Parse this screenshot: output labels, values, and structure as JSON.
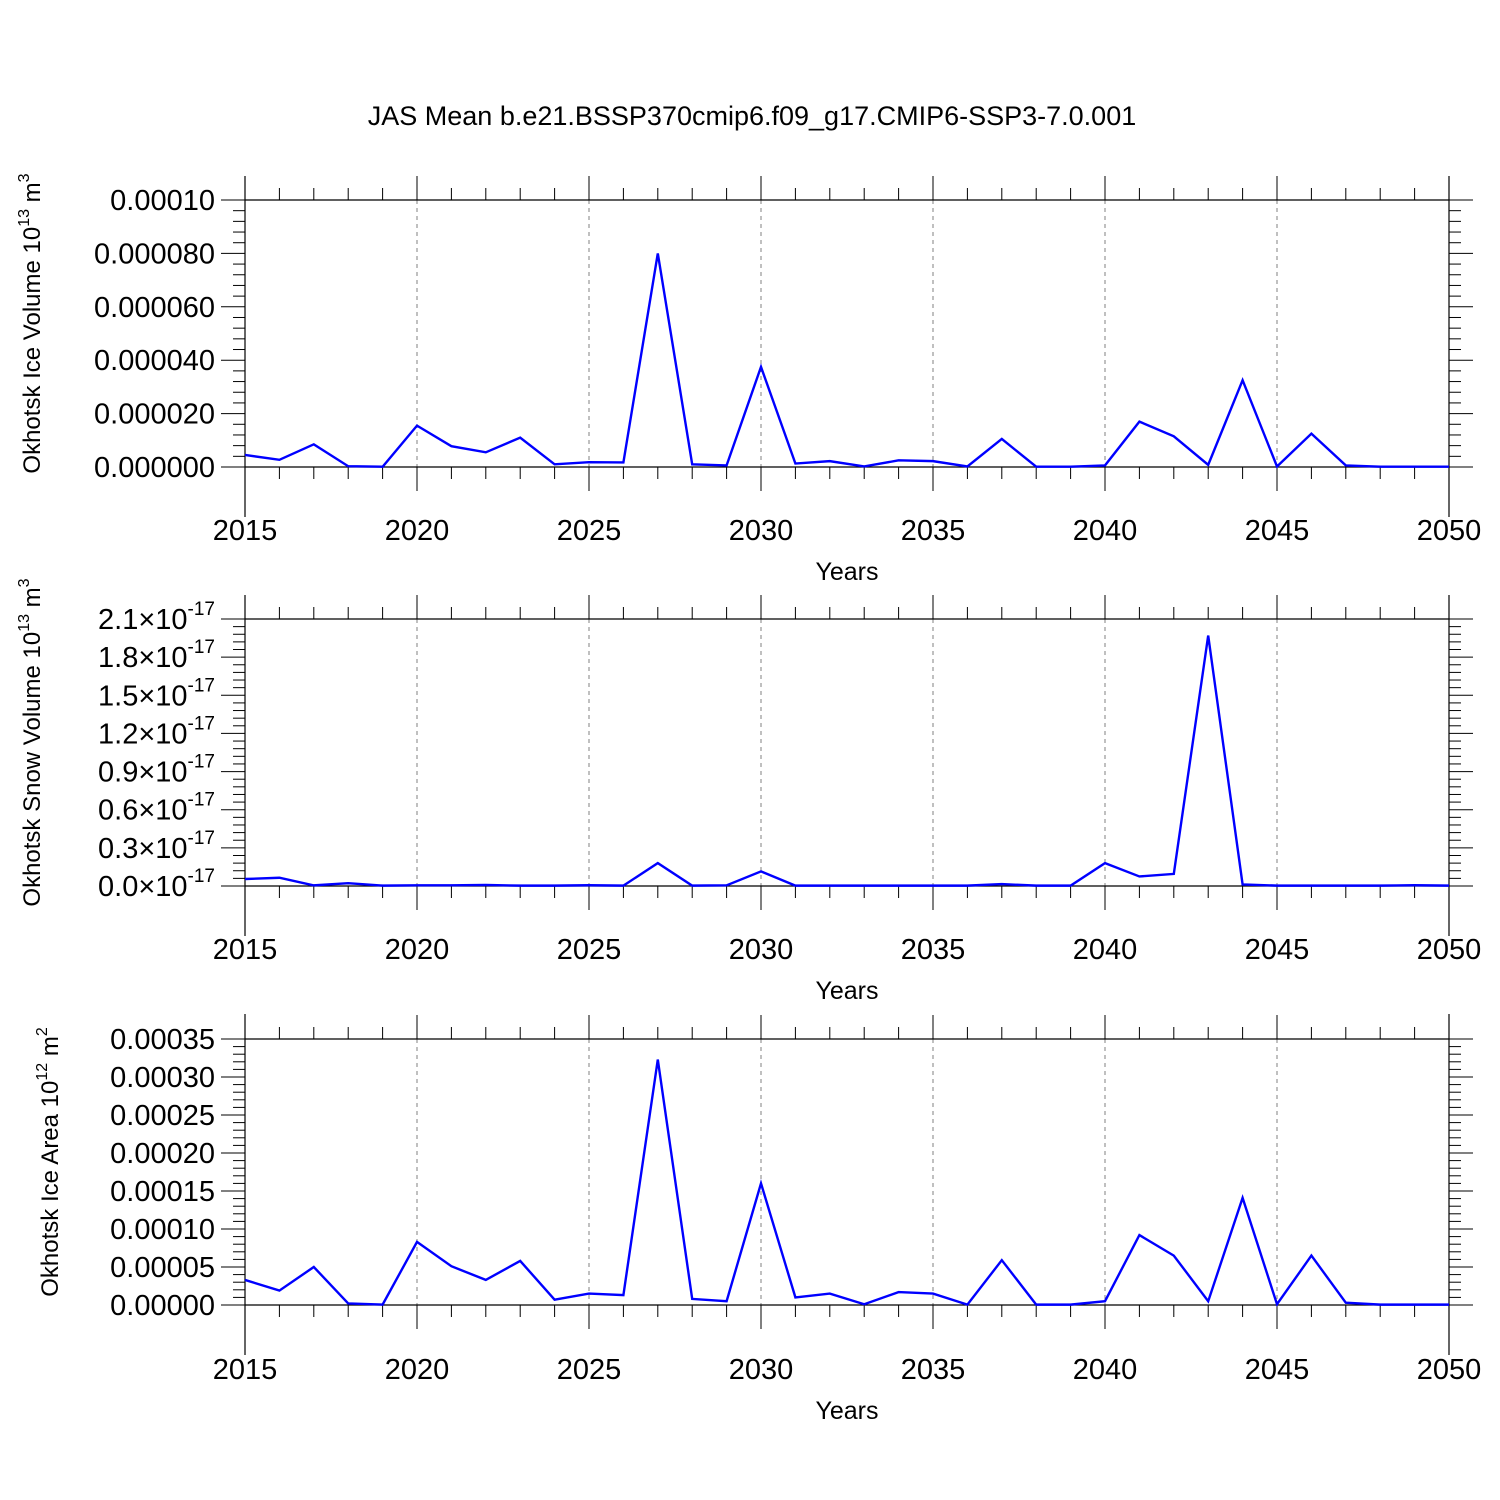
{
  "figure": {
    "title": "JAS Mean b.e21.BSSP370cmip6.f09_g17.CMIP6-SSP3-7.0.001"
  },
  "colors": {
    "line": "#0000ff",
    "axis": "#000000",
    "grid": "#808080"
  },
  "chart_data": [
    {
      "type": "line",
      "ylabel_text": "Okhotsk Ice Volume 10",
      "ylabel_exp": "13",
      "ylabel_unit": " m",
      "ylabel_unit_exp": "3",
      "xlabel": "Years",
      "xlim": [
        2015,
        2050
      ],
      "ylim": [
        0,
        0.0001
      ],
      "y_ticks": [
        0,
        2e-05,
        4e-05,
        6e-05,
        8e-05,
        0.0001
      ],
      "y_tick_labels": [
        "0.000000",
        "0.000020",
        "0.000040",
        "0.000060",
        "0.000080",
        "0.00010"
      ],
      "x_ticks": [
        2015,
        2020,
        2025,
        2030,
        2035,
        2040,
        2045,
        2050
      ],
      "x_tick_labels": [
        "2015",
        "2020",
        "2025",
        "2030",
        "2035",
        "2040",
        "2045",
        "2050"
      ],
      "grid": "vertical dashed at major x ticks",
      "series": [
        {
          "x": [
            2015,
            2016,
            2017,
            2018,
            2019,
            2020,
            2021,
            2022,
            2023,
            2024,
            2025,
            2026,
            2027,
            2028,
            2029,
            2030,
            2031,
            2032,
            2033,
            2034,
            2035,
            2036,
            2037,
            2038,
            2039,
            2040,
            2041,
            2042,
            2043,
            2044,
            2045,
            2046,
            2047,
            2048,
            2049,
            2050
          ],
          "values": [
            4.5e-06,
            2.7e-06,
            8.5e-06,
            3e-07,
            1e-07,
            1.55e-05,
            7.8e-06,
            5.5e-06,
            1.1e-05,
            1e-06,
            1.8e-06,
            1.7e-06,
            8e-05,
            1e-06,
            6e-07,
            3.75e-05,
            1.3e-06,
            2.2e-06,
            2e-07,
            2.5e-06,
            2.2e-06,
            2e-07,
            1.05e-05,
            1e-07,
            1e-07,
            6e-07,
            1.7e-05,
            1.15e-05,
            8e-07,
            3.25e-05,
            2e-07,
            1.25e-05,
            6e-07,
            1e-07,
            1e-07,
            1e-07
          ]
        }
      ]
    },
    {
      "type": "line",
      "ylabel_text": "Okhotsk Snow Volume 10",
      "ylabel_exp": "13",
      "ylabel_unit": " m",
      "ylabel_unit_exp": "3",
      "xlabel": "Years",
      "xlim": [
        2015,
        2050
      ],
      "ylim": [
        0,
        2.1e-17
      ],
      "y_ticks": [
        0,
        3e-18,
        6e-18,
        9e-18,
        1.2e-17,
        1.5e-17,
        1.8e-17,
        2.1e-17
      ],
      "y_tick_labels": [
        "0.0×10-17",
        "0.3×10-17",
        "0.6×10-17",
        "0.9×10-17",
        "1.2×10-17",
        "1.5×10-17",
        "1.8×10-17",
        "2.1×10-17"
      ],
      "y_tick_mantissas": [
        "0.0",
        "0.3",
        "0.6",
        "0.9",
        "1.2",
        "1.5",
        "1.8",
        "2.1"
      ],
      "y_tick_times": "×10",
      "y_tick_exp": "-17",
      "x_ticks": [
        2015,
        2020,
        2025,
        2030,
        2035,
        2040,
        2045,
        2050
      ],
      "x_tick_labels": [
        "2015",
        "2020",
        "2025",
        "2030",
        "2035",
        "2040",
        "2045",
        "2050"
      ],
      "grid": "vertical dashed at major x ticks",
      "series": [
        {
          "x": [
            2015,
            2016,
            2017,
            2018,
            2019,
            2020,
            2021,
            2022,
            2023,
            2024,
            2025,
            2026,
            2027,
            2028,
            2029,
            2030,
            2031,
            2032,
            2033,
            2034,
            2035,
            2036,
            2037,
            2038,
            2039,
            2040,
            2041,
            2042,
            2043,
            2044,
            2045,
            2046,
            2047,
            2048,
            2049,
            2050
          ],
          "values": [
            5.5e-19,
            6.5e-19,
            5e-20,
            2.2e-19,
            3e-20,
            5e-20,
            5e-20,
            8e-20,
            3e-20,
            3e-20,
            6e-20,
            3e-20,
            1.8e-18,
            3e-20,
            5e-20,
            1.15e-18,
            3e-20,
            3e-20,
            3e-20,
            3e-20,
            3e-20,
            3e-20,
            1.5e-19,
            3e-20,
            3e-20,
            1.8e-18,
            7.5e-19,
            9.5e-19,
            1.97e-17,
            1.2e-19,
            3e-20,
            3e-20,
            3e-20,
            3e-20,
            6e-20,
            3e-20
          ]
        }
      ]
    },
    {
      "type": "line",
      "ylabel_text": "Okhotsk Ice Area 10",
      "ylabel_exp": "12",
      "ylabel_unit": " m",
      "ylabel_unit_exp": "2",
      "xlabel": "Years",
      "xlim": [
        2015,
        2050
      ],
      "ylim": [
        0,
        0.00035
      ],
      "y_ticks": [
        0,
        5e-05,
        0.0001,
        0.00015,
        0.0002,
        0.00025,
        0.0003,
        0.00035
      ],
      "y_tick_labels": [
        "0.00000",
        "0.00005",
        "0.00010",
        "0.00015",
        "0.00020",
        "0.00025",
        "0.00030",
        "0.00035"
      ],
      "x_ticks": [
        2015,
        2020,
        2025,
        2030,
        2035,
        2040,
        2045,
        2050
      ],
      "x_tick_labels": [
        "2015",
        "2020",
        "2025",
        "2030",
        "2035",
        "2040",
        "2045",
        "2050"
      ],
      "grid": "vertical dashed at major x ticks",
      "series": [
        {
          "x": [
            2015,
            2016,
            2017,
            2018,
            2019,
            2020,
            2021,
            2022,
            2023,
            2024,
            2025,
            2026,
            2027,
            2028,
            2029,
            2030,
            2031,
            2032,
            2033,
            2034,
            2035,
            2036,
            2037,
            2038,
            2039,
            2040,
            2041,
            2042,
            2043,
            2044,
            2045,
            2046,
            2047,
            2048,
            2049,
            2050
          ],
          "values": [
            3.3e-05,
            1.9e-05,
            5e-05,
            2e-06,
            5e-07,
            8.3e-05,
            5.1e-05,
            3.3e-05,
            5.8e-05,
            7e-06,
            1.5e-05,
            1.3e-05,
            0.000323,
            8e-06,
            5e-06,
            0.00016,
            1e-05,
            1.5e-05,
            1e-06,
            1.7e-05,
            1.5e-05,
            5e-07,
            5.9e-05,
            5e-07,
            5e-07,
            5e-06,
            9.2e-05,
            6.5e-05,
            5e-06,
            0.000141,
            1e-06,
            6.5e-05,
            3e-06,
            5e-07,
            5e-07,
            5e-07
          ]
        }
      ]
    }
  ]
}
